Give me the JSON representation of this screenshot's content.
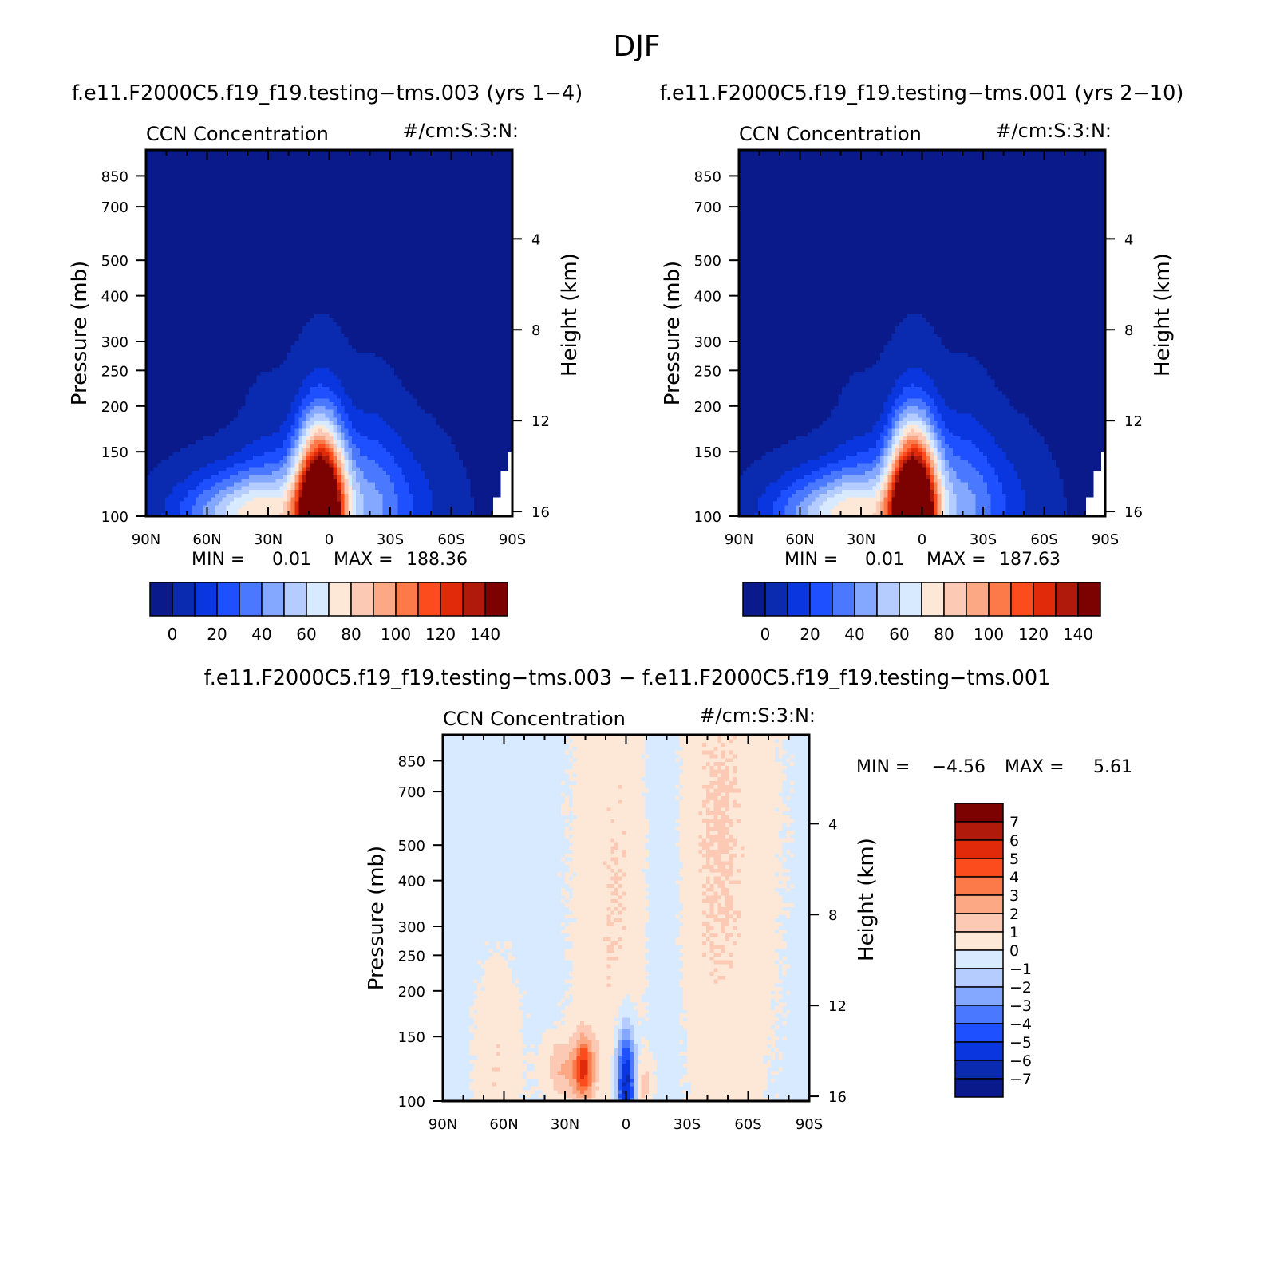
{
  "figure": {
    "title": "DJF"
  },
  "chart_data": [
    {
      "type": "heatmap",
      "id": "panel1",
      "case_title": "f.e11.F2000C5.f19_f19.testing−tms.003 (yrs 1−4)",
      "left_string": "CCN Concentration",
      "right_string": "#/cm:S:3:N:",
      "ylabel": "Pressure (mb)",
      "ylabel_right": "Height (km)",
      "x_ticks": [
        "90N",
        "60N",
        "30N",
        "0",
        "30S",
        "60S",
        "90S"
      ],
      "y_ticks": [
        "100",
        "150",
        "200",
        "250",
        "300",
        "400",
        "500",
        "700",
        "850"
      ],
      "y_ticks_right": [
        "16",
        "12",
        "8",
        "4"
      ],
      "min_label": "MIN =",
      "min_value": "0.01",
      "max_label": "MAX =",
      "max_value": "188.36",
      "colorbar_labels": [
        "0",
        "20",
        "40",
        "60",
        "80",
        "100",
        "120",
        "140"
      ],
      "colorbar_colors": [
        "#0a1a8a",
        "#0a2ab0",
        "#0a36e0",
        "#1e50ff",
        "#4a78ff",
        "#84a8ff",
        "#b4ccff",
        "#d8eaff",
        "#fde8d8",
        "#fccab4",
        "#fca884",
        "#fc7a4a",
        "#fc4c1e",
        "#e02a0a",
        "#b01a0a",
        "#7c0202"
      ],
      "contour_levels": [
        0,
        10,
        20,
        30,
        40,
        50,
        60,
        70,
        80,
        90,
        100,
        110,
        120,
        130,
        140
      ]
    },
    {
      "type": "heatmap",
      "id": "panel2",
      "case_title": "f.e11.F2000C5.f19_f19.testing−tms.001 (yrs 2−10)",
      "left_string": "CCN Concentration",
      "right_string": "#/cm:S:3:N:",
      "ylabel": "Pressure (mb)",
      "ylabel_right": "Height (km)",
      "x_ticks": [
        "90N",
        "60N",
        "30N",
        "0",
        "30S",
        "60S",
        "90S"
      ],
      "y_ticks": [
        "100",
        "150",
        "200",
        "250",
        "300",
        "400",
        "500",
        "700",
        "850"
      ],
      "y_ticks_right": [
        "16",
        "12",
        "8",
        "4"
      ],
      "min_label": "MIN =",
      "min_value": "0.01",
      "max_label": "MAX =",
      "max_value": "187.63",
      "colorbar_labels": [
        "0",
        "20",
        "40",
        "60",
        "80",
        "100",
        "120",
        "140"
      ],
      "colorbar_colors": [
        "#0a1a8a",
        "#0a2ab0",
        "#0a36e0",
        "#1e50ff",
        "#4a78ff",
        "#84a8ff",
        "#b4ccff",
        "#d8eaff",
        "#fde8d8",
        "#fccab4",
        "#fca884",
        "#fc7a4a",
        "#fc4c1e",
        "#e02a0a",
        "#b01a0a",
        "#7c0202"
      ],
      "contour_levels": [
        0,
        10,
        20,
        30,
        40,
        50,
        60,
        70,
        80,
        90,
        100,
        110,
        120,
        130,
        140
      ]
    },
    {
      "type": "heatmap",
      "id": "panel3",
      "case_title": "f.e11.F2000C5.f19_f19.testing−tms.003 − f.e11.F2000C5.f19_f19.testing−tms.001",
      "left_string": "CCN Concentration",
      "right_string": "#/cm:S:3:N:",
      "ylabel": "Pressure (mb)",
      "ylabel_right": "Height (km)",
      "x_ticks": [
        "90N",
        "60N",
        "30N",
        "0",
        "30S",
        "60S",
        "90S"
      ],
      "y_ticks": [
        "100",
        "150",
        "200",
        "250",
        "300",
        "400",
        "500",
        "700",
        "850"
      ],
      "y_ticks_right": [
        "16",
        "12",
        "8",
        "4"
      ],
      "min_label": "MIN =",
      "min_value": "−4.56",
      "max_label": "MAX =",
      "max_value": "5.61",
      "colorbar_labels": [
        "7",
        "6",
        "5",
        "4",
        "3",
        "2",
        "1",
        "0",
        "−1",
        "−2",
        "−3",
        "−4",
        "−5",
        "−6",
        "−7"
      ],
      "colorbar_colors": [
        "#7c0202",
        "#b01a0a",
        "#e02a0a",
        "#fc4c1e",
        "#fc7a4a",
        "#fca884",
        "#fccab4",
        "#fde8d8",
        "#d8eaff",
        "#b4ccff",
        "#84a8ff",
        "#4a78ff",
        "#1e50ff",
        "#0a36e0",
        "#0a2ab0",
        "#0a1a8a"
      ],
      "contour_levels": [
        -7,
        -6,
        -5,
        -4,
        -3,
        -2,
        -1,
        0,
        1,
        2,
        3,
        4,
        5,
        6,
        7
      ]
    }
  ]
}
